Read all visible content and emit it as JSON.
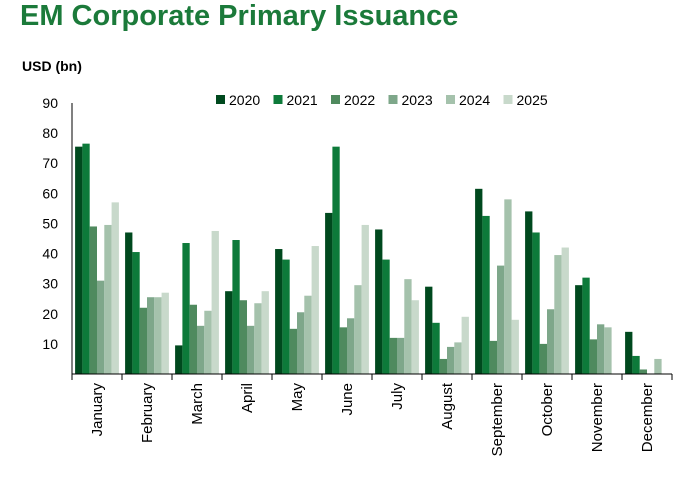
{
  "chart_data": {
    "type": "bar",
    "title": "EM Corporate Primary Issuance",
    "ylabel": "USD (bn)",
    "xlabel": "",
    "ylim": [
      0,
      90
    ],
    "yticks": [
      10,
      20,
      30,
      40,
      50,
      60,
      70,
      80,
      90
    ],
    "legend_position": "top-right",
    "grid": false,
    "categories": [
      "January",
      "February",
      "March",
      "April",
      "May",
      "June",
      "July",
      "August",
      "September",
      "October",
      "November",
      "December"
    ],
    "series": [
      {
        "name": "2020",
        "color": "#00491e",
        "values": [
          75.5,
          47,
          9.5,
          27.5,
          41.5,
          53.5,
          48,
          29,
          61.5,
          54,
          29.5,
          14
        ]
      },
      {
        "name": "2021",
        "color": "#0d7a3a",
        "values": [
          76.5,
          40.5,
          43.5,
          44.5,
          38,
          75.5,
          38,
          17,
          52.5,
          47,
          32,
          6
        ]
      },
      {
        "name": "2022",
        "color": "#4f8a5e",
        "values": [
          49,
          22,
          23,
          24.5,
          15,
          15.5,
          12,
          5,
          11,
          10,
          11.5,
          1.5
        ]
      },
      {
        "name": "2023",
        "color": "#7ea78a",
        "values": [
          31,
          25.5,
          16,
          16,
          20.5,
          18.5,
          12,
          9,
          36,
          21.5,
          16.5,
          0
        ]
      },
      {
        "name": "2024",
        "color": "#a5c2ac",
        "values": [
          49.5,
          25.5,
          21,
          23.5,
          26,
          29.5,
          31.5,
          10.5,
          58,
          39.5,
          15.5,
          5
        ]
      },
      {
        "name": "2025",
        "color": "#c8d9cb",
        "values": [
          57,
          27,
          47.5,
          27.5,
          42.5,
          49.5,
          24.5,
          19,
          18,
          42,
          null,
          null
        ]
      }
    ]
  }
}
